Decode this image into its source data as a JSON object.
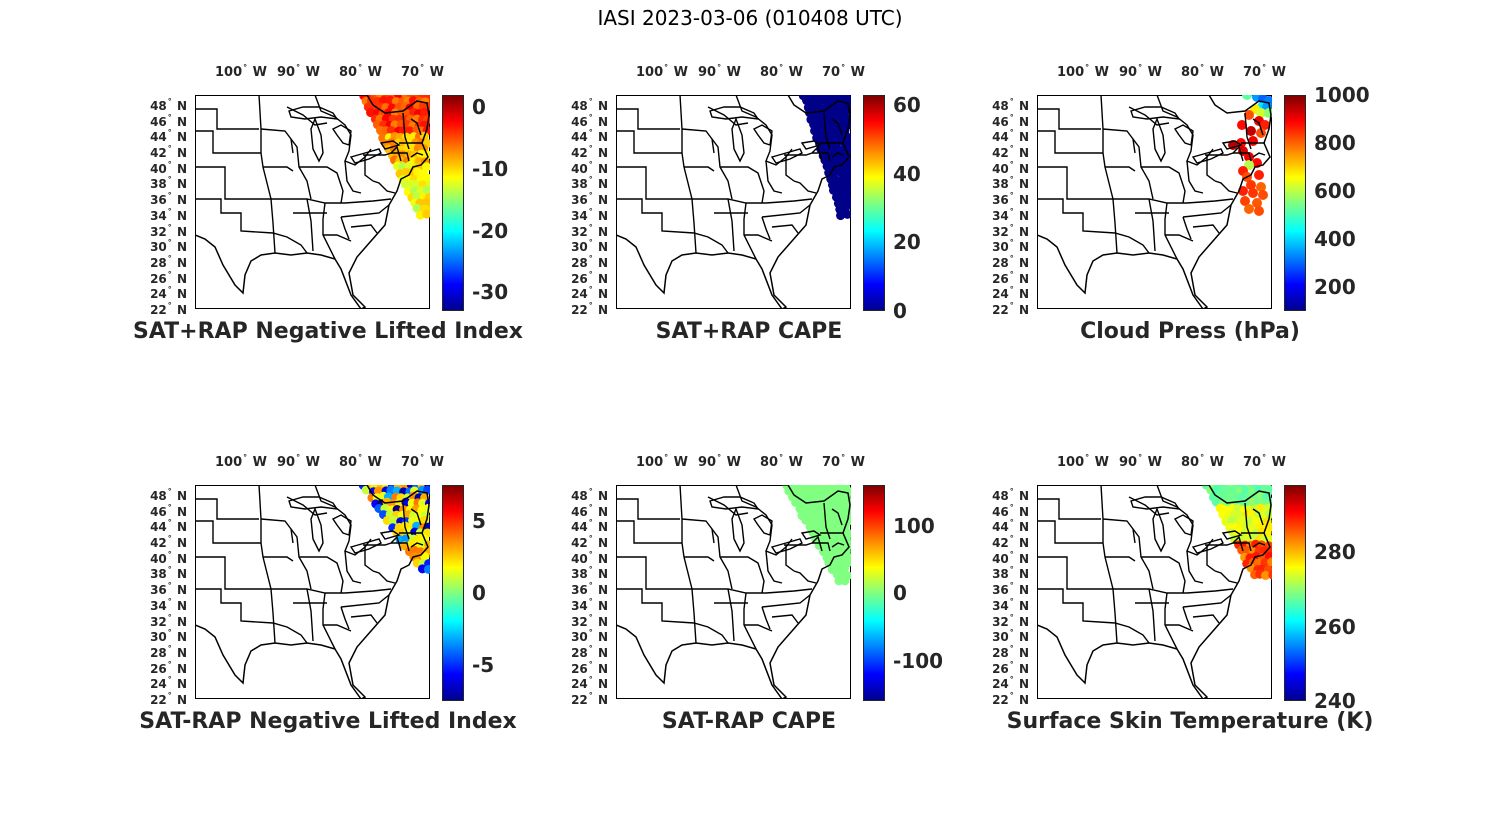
{
  "figure": {
    "title": "IASI 2023-03-06 (010408 UTC)"
  },
  "lon_labels": [
    "100",
    "90",
    "80",
    "70"
  ],
  "lon_hemisphere": "W",
  "lat_labels": [
    "48",
    "46",
    "44",
    "42",
    "40",
    "38",
    "36",
    "34",
    "32",
    "30",
    "28",
    "26",
    "24",
    "22"
  ],
  "lat_hemisphere": "N",
  "colormap": "jet",
  "panels": [
    {
      "title": "SAT+RAP Negative Lifted Index",
      "colorbar_ticks": [
        "0",
        "-10",
        "-20",
        "-30"
      ],
      "colorbar_range": [
        -33,
        2
      ]
    },
    {
      "title": "SAT+RAP CAPE",
      "colorbar_ticks": [
        "60",
        "40",
        "20",
        "0"
      ],
      "colorbar_range": [
        0,
        63
      ]
    },
    {
      "title": "Cloud Press (hPa)",
      "colorbar_ticks": [
        "1000",
        "800",
        "600",
        "400",
        "200"
      ],
      "colorbar_range": [
        100,
        1000
      ]
    },
    {
      "title": "SAT-RAP Negative Lifted Index",
      "colorbar_ticks": [
        "5",
        "0",
        "-5"
      ],
      "colorbar_range": [
        -7.5,
        7.5
      ]
    },
    {
      "title": "SAT-RAP CAPE",
      "colorbar_ticks": [
        "100",
        "0",
        "-100"
      ],
      "colorbar_range": [
        -160,
        160
      ]
    },
    {
      "title": "Surface Skin Temperature (K)",
      "colorbar_ticks": [
        "280",
        "260",
        "240"
      ],
      "colorbar_range": [
        240,
        298
      ]
    }
  ]
}
